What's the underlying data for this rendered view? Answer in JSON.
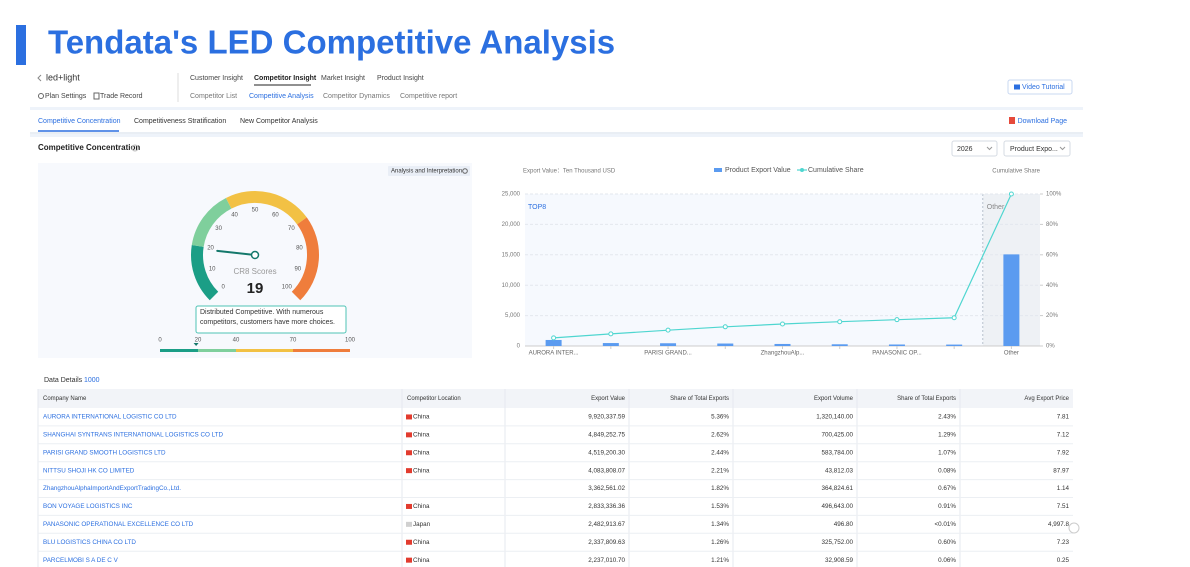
{
  "title": "Tendata's LED Competitive Analysis",
  "app": {
    "search": "led+light",
    "plan_settings": "Plan Settings",
    "trade_record": "Trade Record",
    "nav": [
      "Customer Insight",
      "Competitor Insight",
      "Market Insight",
      "Product Insight"
    ],
    "subnav": [
      "Competitor List",
      "Competitive Analysis",
      "Competitor Dynamics",
      "Competitive report"
    ],
    "video_tutorial": "Video Tutorial",
    "tabs": [
      "Competitive Concentration",
      "Competitiveness Stratification",
      "New Competitor Analysis"
    ],
    "download": "Download Page"
  },
  "section": {
    "title": "Competitive Concentration",
    "year": "2026",
    "metric": "Product Expo..."
  },
  "gauge": {
    "button": "Analysis and Interpretation",
    "caption": "CR8 Scores",
    "value": 19,
    "ticks": [
      0,
      10,
      20,
      30,
      40,
      50,
      60,
      70,
      80,
      90,
      100
    ],
    "tooltip": "Distributed Competitive. With numerous competitors, customers have more choices.",
    "scale_ticks": [
      0,
      20,
      40,
      70,
      100
    ],
    "scale_colors": [
      "#1b9e86",
      "#7fcf9c",
      "#f2c144",
      "#ef7d3c"
    ]
  },
  "chart_data": {
    "type": "bar",
    "y_label": "Export Value：Ten Thousand USD",
    "y2_label": "Cumulative Share",
    "regions": [
      "TOP8",
      "Other"
    ],
    "categories": [
      "AURORA INTER...",
      null,
      "PARISI GRAND...",
      null,
      "ZhangzhouAlp...",
      null,
      "PANASONIC OP...",
      null,
      "Other"
    ],
    "series": [
      {
        "name": "Product Export Value",
        "color": "#5b9bf0",
        "values": [
          992,
          485,
          452,
          408,
          336,
          283,
          248,
          234,
          15070
        ]
      },
      {
        "name": "Cumulative Share",
        "color": "#4fd6d0",
        "type": "line",
        "axis": "y2",
        "values": [
          5.36,
          7.98,
          10.42,
          12.63,
          14.45,
          15.98,
          17.32,
          18.58,
          100
        ]
      }
    ],
    "ylim": [
      0,
      25000
    ],
    "yticks": [
      0,
      {
        "value": 5000,
        "label": "5,000"
      },
      {
        "value": 10000,
        "label": "10,000"
      },
      {
        "value": 15000,
        "label": "15,000"
      },
      {
        "value": 20000,
        "label": "20,000"
      },
      {
        "value": 25000,
        "label": "25,000"
      }
    ],
    "y2lim": [
      0,
      100
    ],
    "y2ticks": [
      {
        "value": 0,
        "label": "0%"
      },
      {
        "value": 20,
        "label": "20%"
      },
      {
        "value": 40,
        "label": "40%"
      },
      {
        "value": 60,
        "label": "60%"
      },
      {
        "value": 80,
        "label": "80%"
      },
      {
        "value": 100,
        "label": "100%"
      }
    ],
    "grid": true
  },
  "table": {
    "title": "Data Details",
    "count": "1000",
    "header": [
      "Company Name",
      "Competitor Location",
      "Export Value",
      "Share of Total Exports",
      "Export Volume",
      "Share of Total Exports",
      "Avg Export Price"
    ],
    "flag_colors": {
      "China": "#e23b2e",
      "Japan": "#d0d0d0"
    },
    "rows": [
      [
        "AURORA INTERNATIONAL LOGISTIC CO LTD",
        "China",
        "9,920,337.59",
        "5.36%",
        "1,320,140.00",
        "2.43%",
        "7.81"
      ],
      [
        "SHANGHAI SYNTRANS INTERNATIONAL LOGISTICS CO LTD",
        "China",
        "4,849,252.75",
        "2.62%",
        "700,425.00",
        "1.29%",
        "7.12"
      ],
      [
        "PARISI GRAND SMOOTH LOGISTICS LTD",
        "China",
        "4,519,200.30",
        "2.44%",
        "583,784.00",
        "1.07%",
        "7.92"
      ],
      [
        "NITTSU SHOJI HK CO LIMITED",
        "China",
        "4,083,808.07",
        "2.21%",
        "43,812.03",
        "0.08%",
        "87.97"
      ],
      [
        "ZhangzhouAlphaImportAndExportTradingCo.,Ltd.",
        null,
        "3,362,561.02",
        "1.82%",
        "364,824.61",
        "0.67%",
        "1.14"
      ],
      [
        "BON VOYAGE LOGISTICS INC",
        "China",
        "2,833,336.36",
        "1.53%",
        "496,643.00",
        "0.91%",
        "7.51"
      ],
      [
        "PANASONIC OPERATIONAL EXCELLENCE CO LTD",
        "Japan",
        "2,482,913.67",
        "1.34%",
        "496.80",
        "<0.01%",
        "4,997.8"
      ],
      [
        "BLU LOGISTICS CHINA CO LTD",
        "China",
        "2,337,809.63",
        "1.26%",
        "325,752.00",
        "0.60%",
        "7.23"
      ],
      [
        "PARCELMOBI S A DE C V",
        "China",
        "2,237,010.70",
        "1.21%",
        "32,908.59",
        "0.06%",
        "0.25"
      ]
    ]
  }
}
